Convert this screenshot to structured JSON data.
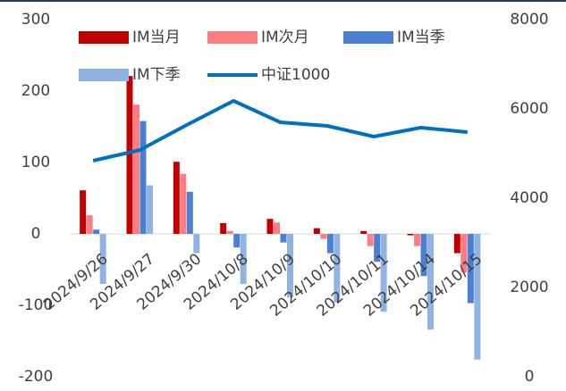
{
  "chart_data": {
    "type": "bar",
    "categories": [
      "2024/9/26",
      "2024/9/27",
      "2024/9/30",
      "2024/10/8",
      "2024/10/9",
      "2024/10/10",
      "2024/10/11",
      "2024/10/14",
      "2024/10/15"
    ],
    "series": [
      {
        "name": "IM当月",
        "color": "#c00000",
        "values": [
          61,
          221,
          101,
          15,
          21,
          8,
          4,
          -2,
          -27
        ]
      },
      {
        "name": "IM次月",
        "color": "#ff7c80",
        "values": [
          26,
          181,
          84,
          4,
          16,
          -7,
          -17,
          -17,
          -54
        ]
      },
      {
        "name": "IM当季",
        "color": "#4a7fd4",
        "values": [
          6,
          158,
          59,
          -19,
          -12,
          -27,
          -39,
          -59,
          -97
        ]
      },
      {
        "name": "IM下季",
        "color": "#8fb4e3",
        "values": [
          -70,
          68,
          -27,
          -70,
          -89,
          -96,
          -109,
          -134,
          -176
        ]
      },
      {
        "name": "中证1000",
        "color": "#0070c0",
        "type": "line",
        "axis": "y2",
        "values": [
          4840,
          5080,
          5640,
          6180,
          5700,
          5620,
          5380,
          5580,
          5480
        ]
      }
    ],
    "ylim": [
      -200,
      300
    ],
    "yticks": [
      -200,
      -100,
      0,
      100,
      200,
      300
    ],
    "y2lim": [
      0,
      8000
    ],
    "y2ticks": [
      0,
      2000,
      4000,
      6000,
      8000
    ]
  }
}
